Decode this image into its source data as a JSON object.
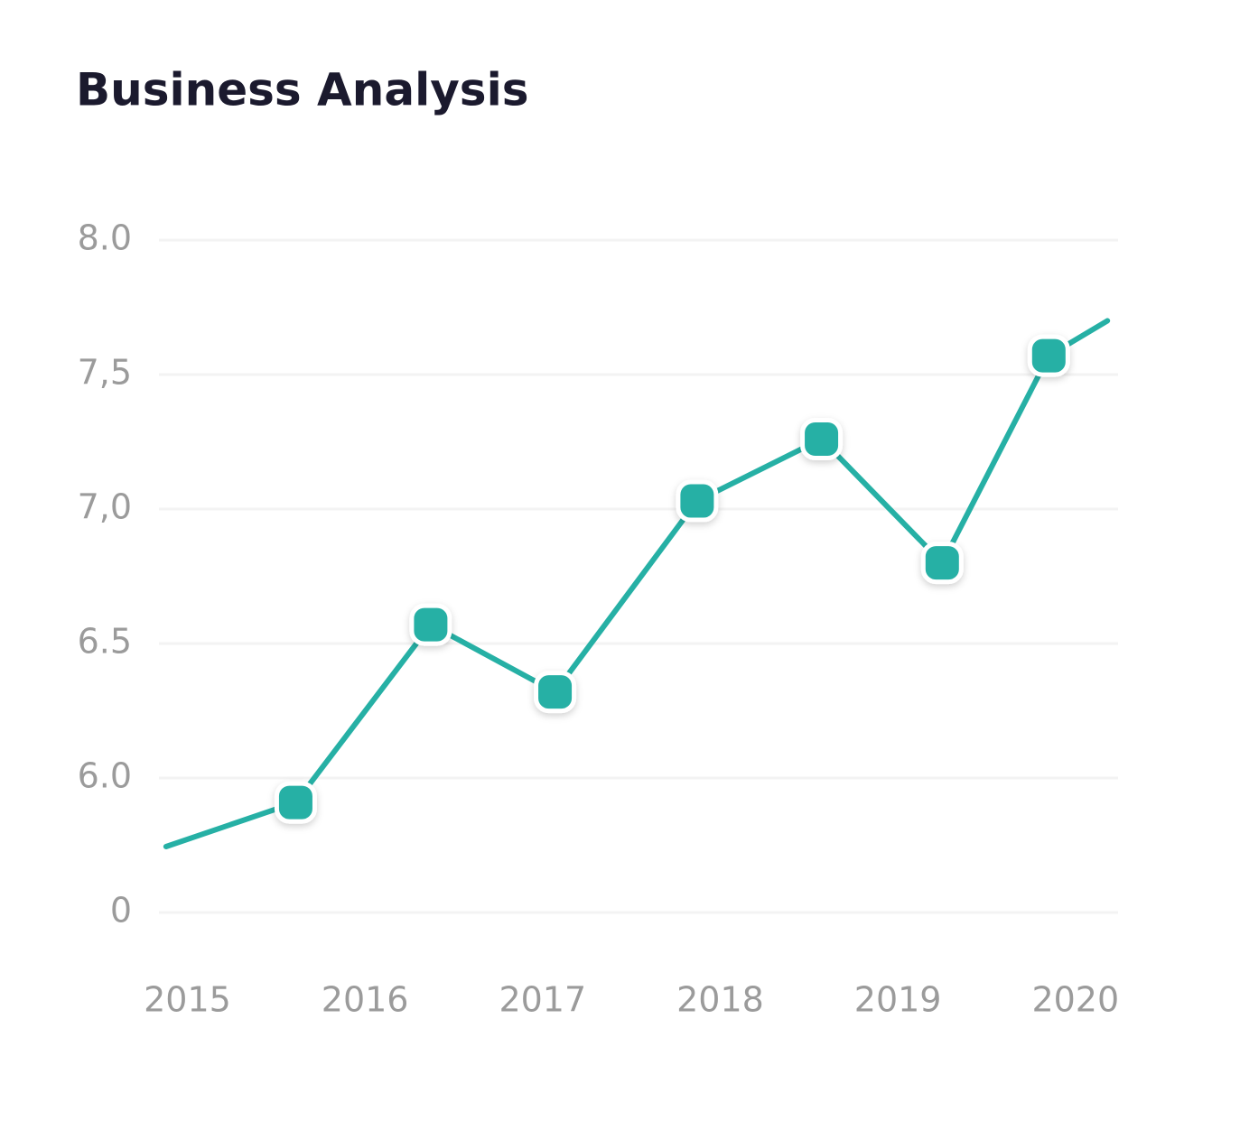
{
  "chart_data": {
    "type": "line",
    "title": "Business Analysis",
    "x": [
      2014.88,
      2015.61,
      2016.37,
      2017.07,
      2017.87,
      2018.57,
      2019.25,
      2019.85,
      2020.18
    ],
    "series": [
      {
        "color": "#26b0a5",
        "values": [
          2.94,
          4.91,
          6.57,
          6.32,
          7.03,
          7.26,
          6.8,
          7.57,
          7.7
        ],
        "markers": [
          false,
          true,
          true,
          true,
          true,
          true,
          true,
          true,
          false
        ]
      }
    ],
    "xlim": [
      2014.84,
      2020.24
    ],
    "xticks": [
      2015,
      2016,
      2017,
      2018,
      2019,
      2020
    ],
    "ylim": [
      0,
      8
    ],
    "yticks": [
      0,
      {
        "value": 6,
        "label": "6.0"
      },
      6.5,
      {
        "value": 7,
        "label": "7,0"
      },
      {
        "value": 7.5,
        "label": "7,5"
      },
      {
        "value": 8,
        "label": "8.0"
      }
    ],
    "axis_break": true,
    "grid": true
  }
}
